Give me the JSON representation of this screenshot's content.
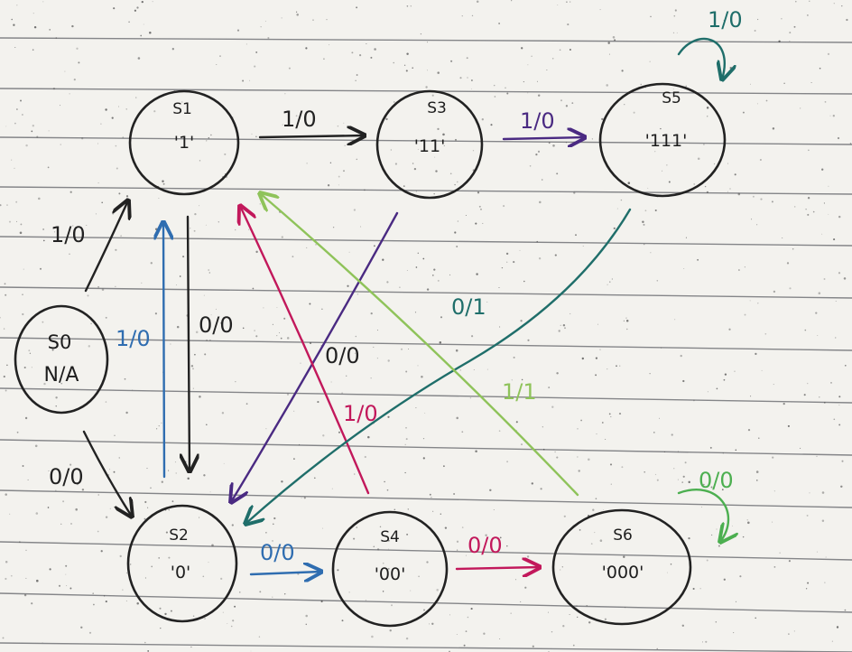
{
  "diagram": {
    "colors": {
      "ink": "#222222",
      "blue": "#2f6db0",
      "purple": "#4a2a82",
      "red": "#c2185b",
      "teal": "#1f6e6a",
      "lightgreen": "#8fc35a",
      "green": "#4caf50",
      "rule": "#5f6166",
      "paper": "#f3f2ee"
    },
    "states": {
      "s0": {
        "name": "S0",
        "value": "N/A"
      },
      "s1": {
        "name": "S1",
        "value": "'1'"
      },
      "s2": {
        "name": "S2",
        "value": "'0'"
      },
      "s3": {
        "name": "S3",
        "value": "'11'"
      },
      "s4": {
        "name": "S4",
        "value": "'00'"
      },
      "s5": {
        "name": "S5",
        "value": "'111'"
      },
      "s6": {
        "name": "S6",
        "value": "'000'"
      }
    },
    "transitions": {
      "s0_s1": "1/0",
      "s0_s2": "0/0",
      "s1_s2": "0/0",
      "s2_s1": "1/0",
      "s1_s3": "1/0",
      "s3_s5": "1/0",
      "s5_loop": "1/0",
      "s3_s2": "0/0",
      "s4_s1": "1/0",
      "s5_s2": "0/1",
      "s6_s1": "1/1",
      "s2_s4": "0/0",
      "s4_s6": "0/0",
      "s6_loop": "0/0"
    }
  }
}
